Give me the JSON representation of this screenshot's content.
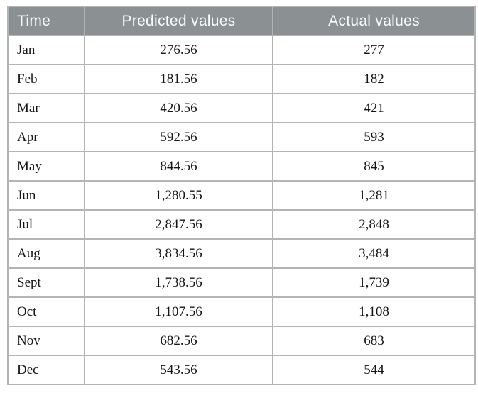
{
  "table": {
    "columns": [
      "Time",
      "Predicted values",
      "Actual values"
    ],
    "rows": [
      {
        "time": "Jan",
        "predicted": "276.56",
        "actual": "277"
      },
      {
        "time": "Feb",
        "predicted": "181.56",
        "actual": "182"
      },
      {
        "time": "Mar",
        "predicted": "420.56",
        "actual": "421"
      },
      {
        "time": "Apr",
        "predicted": "592.56",
        "actual": "593"
      },
      {
        "time": "May",
        "predicted": "844.56",
        "actual": "845"
      },
      {
        "time": "Jun",
        "predicted": "1,280.55",
        "actual": "1,281"
      },
      {
        "time": "Jul",
        "predicted": "2,847.56",
        "actual": "2,848"
      },
      {
        "time": "Aug",
        "predicted": "3,834.56",
        "actual": "3,484"
      },
      {
        "time": "Sept",
        "predicted": "1,738.56",
        "actual": "1,739"
      },
      {
        "time": "Oct",
        "predicted": "1,107.56",
        "actual": "1,108"
      },
      {
        "time": "Nov",
        "predicted": "682.56",
        "actual": "683"
      },
      {
        "time": "Dec",
        "predicted": "543.56",
        "actual": "544"
      }
    ]
  },
  "colors": {
    "header_bg": "#8b9092",
    "header_text": "#fbfbfb",
    "border": "#b2b5b6",
    "body_text": "#151515"
  },
  "chart_data": {
    "type": "table",
    "categories": [
      "Jan",
      "Feb",
      "Mar",
      "Apr",
      "May",
      "Jun",
      "Jul",
      "Aug",
      "Sept",
      "Oct",
      "Nov",
      "Dec"
    ],
    "series": [
      {
        "name": "Predicted values",
        "values": [
          276.56,
          181.56,
          420.56,
          592.56,
          844.56,
          1280.55,
          2847.56,
          3834.56,
          1738.56,
          1107.56,
          682.56,
          543.56
        ]
      },
      {
        "name": "Actual values",
        "values": [
          277,
          182,
          421,
          593,
          845,
          1281,
          2848,
          3484,
          1739,
          1108,
          683,
          544
        ]
      }
    ]
  }
}
